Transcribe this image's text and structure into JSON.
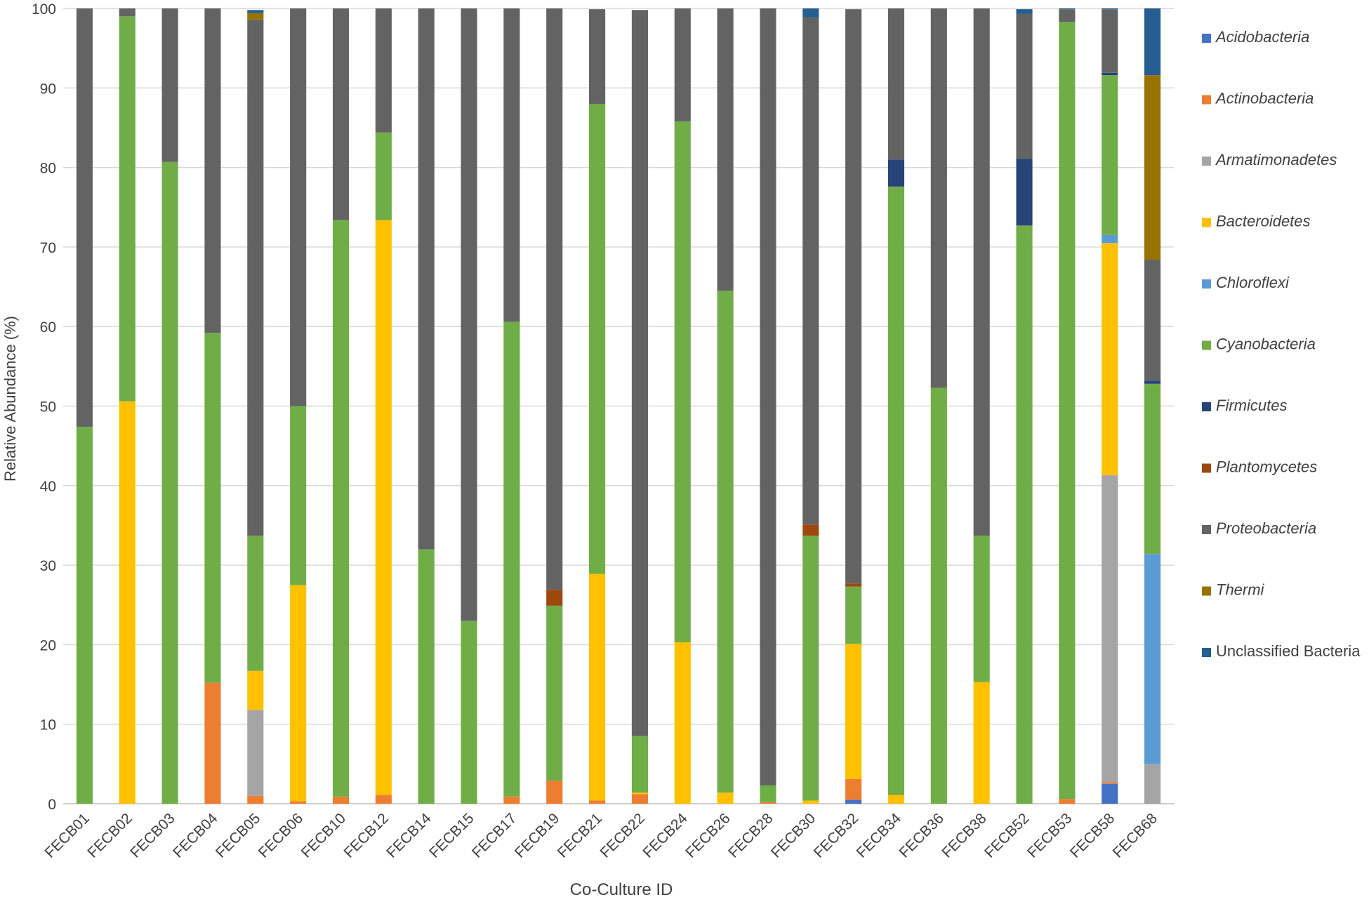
{
  "chart_data": {
    "type": "bar",
    "stacked": true,
    "title": "",
    "xlabel": "Co-Culture ID",
    "ylabel": "Relative Abundance (%)",
    "ylim": [
      0,
      100
    ],
    "yticks": [
      0,
      10,
      20,
      30,
      40,
      50,
      60,
      70,
      80,
      90,
      100
    ],
    "grid": "horizontal",
    "legend_position": "right",
    "categories": [
      "FECB01",
      "FECB02",
      "FECB03",
      "FECB04",
      "FECB05",
      "FECB06",
      "FECB10",
      "FECB12",
      "FECB14",
      "FECB15",
      "FECB17",
      "FECB19",
      "FECB21",
      "FECB22",
      "FECB24",
      "FECB26",
      "FECB28",
      "FECB30",
      "FECB32",
      "FECB34",
      "FECB36",
      "FECB38",
      "FECB52",
      "FECB53",
      "FECB58",
      "FECB68"
    ],
    "series": [
      {
        "name": "Acidobacteria",
        "italic": true,
        "color": "#4472C4",
        "values": [
          0,
          0,
          0,
          0,
          0,
          0,
          0,
          0,
          0,
          0,
          0,
          0,
          0,
          0,
          0,
          0,
          0,
          0,
          0.5,
          0,
          0,
          0,
          0,
          0,
          2.5,
          0
        ]
      },
      {
        "name": "Actinobacteria",
        "italic": true,
        "color": "#ED7D31",
        "values": [
          0,
          0,
          0,
          15.2,
          1.0,
          0.3,
          0.9,
          1.1,
          0,
          0,
          0.9,
          2.9,
          0.4,
          1.2,
          0,
          0,
          0.2,
          0,
          2.6,
          0,
          0,
          0,
          0,
          0.6,
          0.2,
          0
        ]
      },
      {
        "name": "Armatimonadetes",
        "italic": true,
        "color": "#A5A5A5",
        "values": [
          0,
          0,
          0,
          0,
          10.8,
          0,
          0,
          0,
          0,
          0,
          0,
          0,
          0,
          0,
          0,
          0,
          0,
          0,
          0,
          0,
          0,
          0,
          0,
          0,
          38.6,
          5.0
        ]
      },
      {
        "name": "Bacteroidetes",
        "italic": true,
        "color": "#FFC000",
        "values": [
          0,
          50.6,
          0,
          0,
          4.9,
          27.2,
          0,
          72.3,
          0,
          0,
          0,
          0,
          28.5,
          0.2,
          20.3,
          1.4,
          0,
          0.4,
          17.0,
          1.1,
          0,
          15.3,
          0,
          0,
          29.2,
          0
        ]
      },
      {
        "name": "Chloroflexi",
        "italic": true,
        "color": "#5B9BD5",
        "values": [
          0,
          0,
          0,
          0,
          0,
          0,
          0,
          0,
          0,
          0,
          0,
          0,
          0,
          0,
          0,
          0,
          0,
          0,
          0,
          0,
          0,
          0,
          0,
          0,
          1.0,
          26.4
        ]
      },
      {
        "name": "Cyanobacteria",
        "italic": true,
        "color": "#70AD47",
        "values": [
          47.4,
          48.4,
          80.7,
          44.0,
          17.0,
          22.5,
          72.5,
          11.0,
          32.0,
          23.0,
          59.7,
          22.0,
          59.1,
          7.1,
          65.5,
          63.1,
          2.1,
          33.3,
          7.2,
          76.5,
          52.3,
          18.4,
          72.7,
          97.7,
          20.1,
          21.4
        ]
      },
      {
        "name": "Firmicutes",
        "italic": true,
        "color": "#264478",
        "values": [
          0,
          0,
          0,
          0,
          0,
          0,
          0,
          0,
          0,
          0,
          0,
          0,
          0,
          0,
          0,
          0,
          0,
          0,
          0,
          3.4,
          0,
          0,
          8.4,
          0,
          0.3,
          0.4
        ]
      },
      {
        "name": "Plantomycetes",
        "italic": true,
        "color": "#9E480E",
        "values": [
          0,
          0,
          0,
          0,
          0,
          0,
          0,
          0,
          0,
          0,
          0,
          2.0,
          0,
          0,
          0,
          0,
          0,
          1.4,
          0.4,
          0,
          0,
          0,
          0,
          0,
          0,
          0
        ]
      },
      {
        "name": "Proteobacteria",
        "italic": true,
        "color": "#636363",
        "values": [
          52.6,
          1.0,
          19.3,
          40.8,
          64.9,
          50.0,
          26.6,
          15.6,
          68.0,
          77.0,
          39.4,
          73.1,
          11.9,
          91.3,
          14.2,
          35.5,
          97.7,
          63.8,
          72.2,
          19.0,
          47.7,
          66.3,
          18.2,
          1.6,
          8.0,
          15.2
        ]
      },
      {
        "name": "Thermi",
        "italic": true,
        "color": "#997300",
        "values": [
          0,
          0,
          0,
          0,
          0.8,
          0,
          0,
          0,
          0,
          0,
          0,
          0,
          0,
          0,
          0,
          0,
          0,
          0,
          0,
          0,
          0,
          0,
          0,
          0,
          0,
          23.2
        ]
      },
      {
        "name": "Unclassified Bacteria",
        "italic": false,
        "color": "#255E91",
        "values": [
          0,
          0,
          0,
          0,
          0.4,
          0,
          0,
          0,
          0,
          0,
          0,
          0,
          0,
          0,
          0,
          0,
          0,
          1.1,
          0,
          0,
          0,
          0,
          0.6,
          0.1,
          0.1,
          8.4
        ]
      }
    ]
  },
  "colors": {
    "gridline": "#d9d9d9",
    "axis": "#bfbfbf",
    "text": "#404040"
  }
}
